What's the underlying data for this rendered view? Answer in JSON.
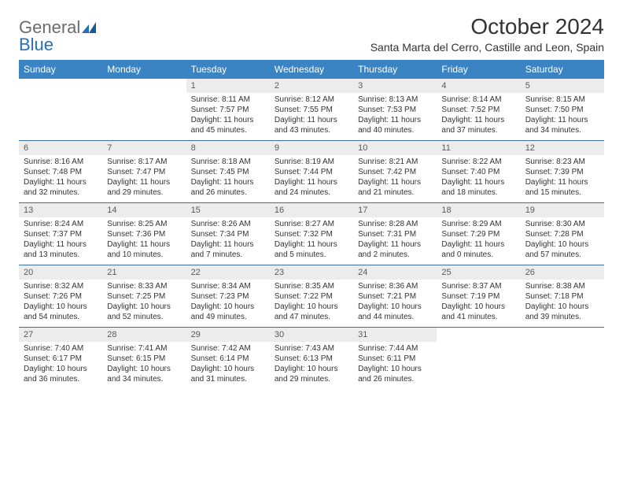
{
  "logo": {
    "general": "General",
    "blue": "Blue"
  },
  "title": "October 2024",
  "location": "Santa Marta del Cerro, Castille and Leon, Spain",
  "colors": {
    "header_bg": "#3b84c4",
    "header_text": "#ffffff",
    "daynum_bg": "#ececec",
    "daynum_text": "#5a5a5a",
    "rule": "#3b6fa0",
    "logo_gray": "#6b6b6b",
    "logo_blue": "#2570b8"
  },
  "dayNames": [
    "Sunday",
    "Monday",
    "Tuesday",
    "Wednesday",
    "Thursday",
    "Friday",
    "Saturday"
  ],
  "weeks": [
    [
      {
        "empty": true
      },
      {
        "empty": true
      },
      {
        "num": "1",
        "sunrise": "Sunrise: 8:11 AM",
        "sunset": "Sunset: 7:57 PM",
        "d1": "Daylight: 11 hours",
        "d2": "and 45 minutes."
      },
      {
        "num": "2",
        "sunrise": "Sunrise: 8:12 AM",
        "sunset": "Sunset: 7:55 PM",
        "d1": "Daylight: 11 hours",
        "d2": "and 43 minutes."
      },
      {
        "num": "3",
        "sunrise": "Sunrise: 8:13 AM",
        "sunset": "Sunset: 7:53 PM",
        "d1": "Daylight: 11 hours",
        "d2": "and 40 minutes."
      },
      {
        "num": "4",
        "sunrise": "Sunrise: 8:14 AM",
        "sunset": "Sunset: 7:52 PM",
        "d1": "Daylight: 11 hours",
        "d2": "and 37 minutes."
      },
      {
        "num": "5",
        "sunrise": "Sunrise: 8:15 AM",
        "sunset": "Sunset: 7:50 PM",
        "d1": "Daylight: 11 hours",
        "d2": "and 34 minutes."
      }
    ],
    [
      {
        "num": "6",
        "sunrise": "Sunrise: 8:16 AM",
        "sunset": "Sunset: 7:48 PM",
        "d1": "Daylight: 11 hours",
        "d2": "and 32 minutes."
      },
      {
        "num": "7",
        "sunrise": "Sunrise: 8:17 AM",
        "sunset": "Sunset: 7:47 PM",
        "d1": "Daylight: 11 hours",
        "d2": "and 29 minutes."
      },
      {
        "num": "8",
        "sunrise": "Sunrise: 8:18 AM",
        "sunset": "Sunset: 7:45 PM",
        "d1": "Daylight: 11 hours",
        "d2": "and 26 minutes."
      },
      {
        "num": "9",
        "sunrise": "Sunrise: 8:19 AM",
        "sunset": "Sunset: 7:44 PM",
        "d1": "Daylight: 11 hours",
        "d2": "and 24 minutes."
      },
      {
        "num": "10",
        "sunrise": "Sunrise: 8:21 AM",
        "sunset": "Sunset: 7:42 PM",
        "d1": "Daylight: 11 hours",
        "d2": "and 21 minutes."
      },
      {
        "num": "11",
        "sunrise": "Sunrise: 8:22 AM",
        "sunset": "Sunset: 7:40 PM",
        "d1": "Daylight: 11 hours",
        "d2": "and 18 minutes."
      },
      {
        "num": "12",
        "sunrise": "Sunrise: 8:23 AM",
        "sunset": "Sunset: 7:39 PM",
        "d1": "Daylight: 11 hours",
        "d2": "and 15 minutes."
      }
    ],
    [
      {
        "num": "13",
        "sunrise": "Sunrise: 8:24 AM",
        "sunset": "Sunset: 7:37 PM",
        "d1": "Daylight: 11 hours",
        "d2": "and 13 minutes."
      },
      {
        "num": "14",
        "sunrise": "Sunrise: 8:25 AM",
        "sunset": "Sunset: 7:36 PM",
        "d1": "Daylight: 11 hours",
        "d2": "and 10 minutes."
      },
      {
        "num": "15",
        "sunrise": "Sunrise: 8:26 AM",
        "sunset": "Sunset: 7:34 PM",
        "d1": "Daylight: 11 hours",
        "d2": "and 7 minutes."
      },
      {
        "num": "16",
        "sunrise": "Sunrise: 8:27 AM",
        "sunset": "Sunset: 7:32 PM",
        "d1": "Daylight: 11 hours",
        "d2": "and 5 minutes."
      },
      {
        "num": "17",
        "sunrise": "Sunrise: 8:28 AM",
        "sunset": "Sunset: 7:31 PM",
        "d1": "Daylight: 11 hours",
        "d2": "and 2 minutes."
      },
      {
        "num": "18",
        "sunrise": "Sunrise: 8:29 AM",
        "sunset": "Sunset: 7:29 PM",
        "d1": "Daylight: 11 hours",
        "d2": "and 0 minutes."
      },
      {
        "num": "19",
        "sunrise": "Sunrise: 8:30 AM",
        "sunset": "Sunset: 7:28 PM",
        "d1": "Daylight: 10 hours",
        "d2": "and 57 minutes."
      }
    ],
    [
      {
        "num": "20",
        "sunrise": "Sunrise: 8:32 AM",
        "sunset": "Sunset: 7:26 PM",
        "d1": "Daylight: 10 hours",
        "d2": "and 54 minutes."
      },
      {
        "num": "21",
        "sunrise": "Sunrise: 8:33 AM",
        "sunset": "Sunset: 7:25 PM",
        "d1": "Daylight: 10 hours",
        "d2": "and 52 minutes."
      },
      {
        "num": "22",
        "sunrise": "Sunrise: 8:34 AM",
        "sunset": "Sunset: 7:23 PM",
        "d1": "Daylight: 10 hours",
        "d2": "and 49 minutes."
      },
      {
        "num": "23",
        "sunrise": "Sunrise: 8:35 AM",
        "sunset": "Sunset: 7:22 PM",
        "d1": "Daylight: 10 hours",
        "d2": "and 47 minutes."
      },
      {
        "num": "24",
        "sunrise": "Sunrise: 8:36 AM",
        "sunset": "Sunset: 7:21 PM",
        "d1": "Daylight: 10 hours",
        "d2": "and 44 minutes."
      },
      {
        "num": "25",
        "sunrise": "Sunrise: 8:37 AM",
        "sunset": "Sunset: 7:19 PM",
        "d1": "Daylight: 10 hours",
        "d2": "and 41 minutes."
      },
      {
        "num": "26",
        "sunrise": "Sunrise: 8:38 AM",
        "sunset": "Sunset: 7:18 PM",
        "d1": "Daylight: 10 hours",
        "d2": "and 39 minutes."
      }
    ],
    [
      {
        "num": "27",
        "sunrise": "Sunrise: 7:40 AM",
        "sunset": "Sunset: 6:17 PM",
        "d1": "Daylight: 10 hours",
        "d2": "and 36 minutes."
      },
      {
        "num": "28",
        "sunrise": "Sunrise: 7:41 AM",
        "sunset": "Sunset: 6:15 PM",
        "d1": "Daylight: 10 hours",
        "d2": "and 34 minutes."
      },
      {
        "num": "29",
        "sunrise": "Sunrise: 7:42 AM",
        "sunset": "Sunset: 6:14 PM",
        "d1": "Daylight: 10 hours",
        "d2": "and 31 minutes."
      },
      {
        "num": "30",
        "sunrise": "Sunrise: 7:43 AM",
        "sunset": "Sunset: 6:13 PM",
        "d1": "Daylight: 10 hours",
        "d2": "and 29 minutes."
      },
      {
        "num": "31",
        "sunrise": "Sunrise: 7:44 AM",
        "sunset": "Sunset: 6:11 PM",
        "d1": "Daylight: 10 hours",
        "d2": "and 26 minutes."
      },
      {
        "empty": true
      },
      {
        "empty": true
      }
    ]
  ]
}
